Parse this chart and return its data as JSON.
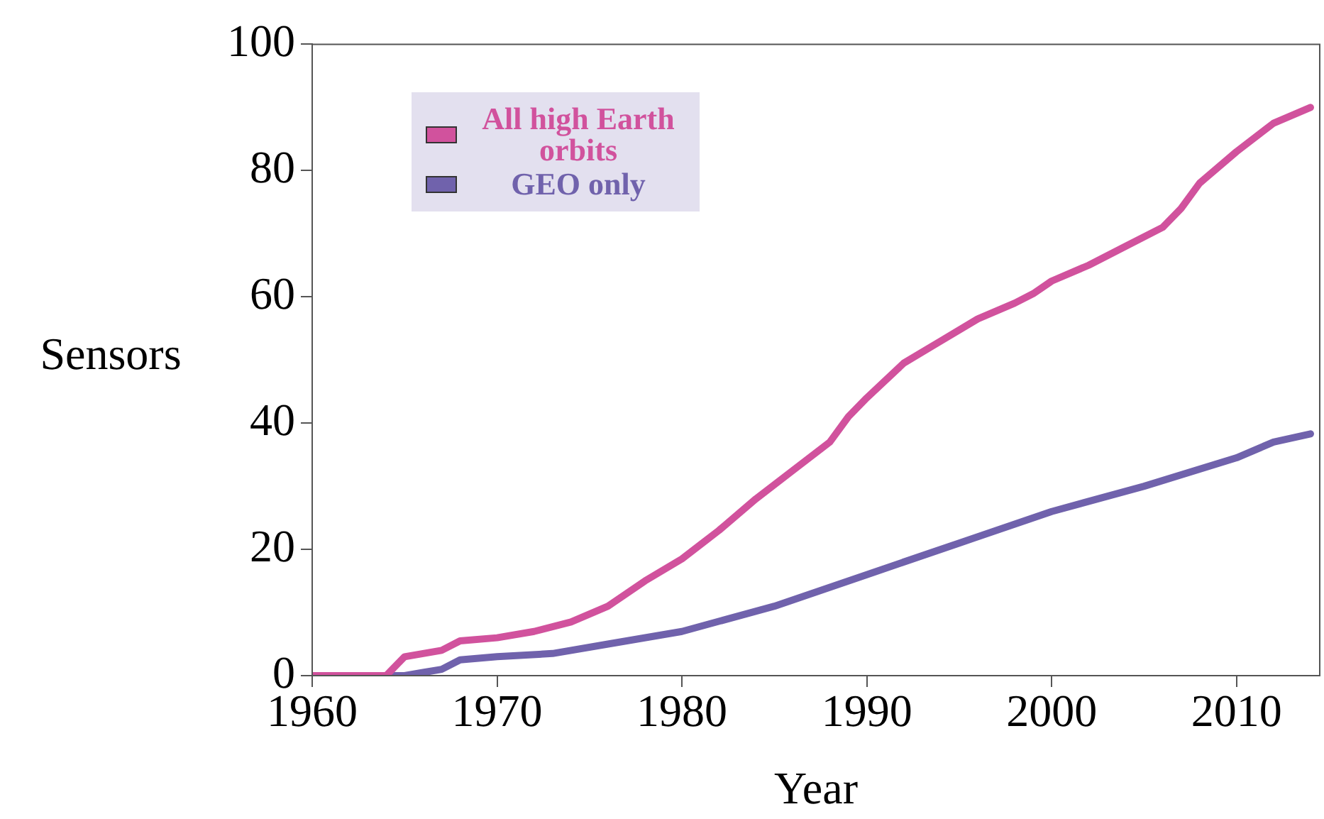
{
  "chart_data": {
    "type": "line",
    "xlabel": "Year",
    "ylabel": "Sensors",
    "xlim": [
      1960,
      2014.5
    ],
    "ylim": [
      0,
      100
    ],
    "xticks": [
      1960,
      1970,
      1980,
      1990,
      2000,
      2010
    ],
    "yticks": [
      0,
      20,
      40,
      60,
      80,
      100
    ],
    "grid": false,
    "legend": "top left",
    "marker": "none",
    "line_style": "solid",
    "series": [
      {
        "name": "All high Earth orbits",
        "color": "#d1529d",
        "x": [
          1960,
          1964,
          1965,
          1967,
          1968,
          1970,
          1972,
          1974,
          1976,
          1978,
          1980,
          1982,
          1984,
          1986,
          1988,
          1989,
          1990,
          1992,
          1994,
          1996,
          1998,
          1999,
          2000,
          2002,
          2004,
          2006,
          2007,
          2008,
          2010,
          2012,
          2014
        ],
        "values": [
          0,
          0,
          3,
          4,
          5.5,
          6,
          7,
          8.5,
          11,
          15,
          18.5,
          23,
          28,
          32.5,
          37,
          41,
          44,
          49.5,
          53,
          56.5,
          59,
          60.5,
          62.5,
          65,
          68,
          71,
          74,
          78,
          83,
          87.5,
          90
        ]
      },
      {
        "name": "GEO only",
        "color": "#7062ac",
        "x": [
          1960,
          1965,
          1966,
          1967,
          1968,
          1970,
          1973,
          1976,
          1980,
          1985,
          1990,
          1995,
          2000,
          2005,
          2010,
          2012,
          2014
        ],
        "values": [
          0,
          0,
          0.5,
          1,
          2.5,
          3,
          3.5,
          5,
          7,
          11,
          16,
          21,
          26,
          30,
          34.5,
          37,
          38.3
        ]
      }
    ]
  }
}
